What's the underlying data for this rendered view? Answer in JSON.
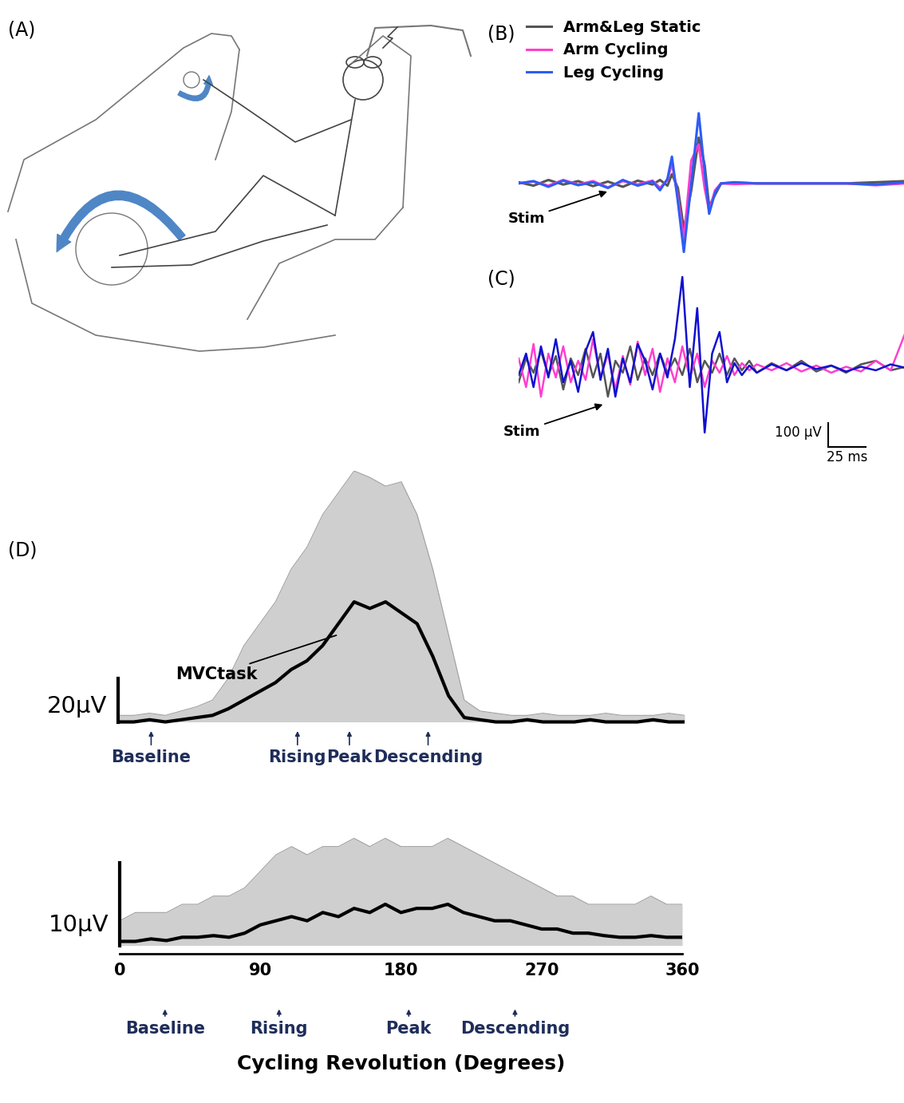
{
  "chart_data": [
    {
      "type": "diagram",
      "title": "(A)"
    },
    {
      "type": "line",
      "title": "(B)",
      "x": [
        0,
        10,
        20,
        30,
        40,
        50,
        60,
        70,
        80,
        90,
        95,
        100,
        103,
        107,
        111,
        116,
        121,
        125,
        128,
        132,
        136,
        145,
        160,
        180,
        200,
        220,
        240,
        260
      ],
      "xlim": [
        0,
        260
      ],
      "ylim": [
        -350,
        750
      ],
      "tick_labels": false,
      "legend": "upper left",
      "series": [
        {
          "name": "Arm&Leg Static",
          "color": "#555555",
          "values": [
            5,
            -10,
            15,
            -5,
            10,
            -12,
            8,
            -15,
            12,
            -5,
            15,
            -10,
            40,
            -20,
            -200,
            -30,
            200,
            80,
            -100,
            -50,
            0,
            3,
            0,
            0,
            0,
            0,
            5,
            10
          ]
        },
        {
          "name": "Arm Cycling",
          "color": "#ff3fcf",
          "values": [
            0,
            8,
            -10,
            15,
            -5,
            10,
            -18,
            10,
            -5,
            12,
            -20,
            15,
            90,
            -60,
            -250,
            100,
            170,
            -20,
            -120,
            -30,
            0,
            -3,
            0,
            0,
            0,
            0,
            -8,
            0
          ]
        },
        {
          "name": "Leg Cycling",
          "color": "#2d5cf5",
          "values": [
            0,
            10,
            -15,
            12,
            -8,
            5,
            -20,
            15,
            -10,
            8,
            -30,
            20,
            117,
            -80,
            -300,
            0,
            307,
            50,
            -133,
            -40,
            0,
            5,
            0,
            0,
            0,
            0,
            -5,
            5
          ]
        }
      ],
      "annotations": [
        {
          "text": "Stim",
          "x": 61,
          "y": -33
        }
      ]
    },
    {
      "type": "line",
      "title": "(C)",
      "x": [
        0,
        5,
        10,
        15,
        20,
        25,
        30,
        35,
        40,
        45,
        50,
        55,
        60,
        65,
        70,
        75,
        80,
        85,
        90,
        95,
        100,
        105,
        110,
        115,
        120,
        125,
        130,
        135,
        140,
        145,
        150,
        155,
        160,
        170,
        180,
        190,
        200,
        210,
        220,
        230,
        240,
        250,
        260
      ],
      "xlim": [
        0,
        260
      ],
      "ylim": [
        -330,
        420
      ],
      "tick_labels": false,
      "series": [
        {
          "color": "#555555",
          "values": [
            -60,
            40,
            -20,
            70,
            -30,
            50,
            -90,
            40,
            -30,
            80,
            -40,
            60,
            -120,
            30,
            -20,
            90,
            -50,
            40,
            -30,
            60,
            -20,
            40,
            -30,
            80,
            -60,
            30,
            -20,
            60,
            -30,
            40,
            -10,
            30,
            -20,
            20,
            -10,
            30,
            -15,
            10,
            -20,
            15,
            30,
            -10,
            5
          ]
        },
        {
          "color": "#ff3fcf",
          "values": [
            40,
            -80,
            100,
            -120,
            60,
            -40,
            90,
            -60,
            30,
            -50,
            120,
            -40,
            60,
            -90,
            50,
            -70,
            110,
            -30,
            80,
            -100,
            40,
            -60,
            90,
            -40,
            60,
            -80,
            30,
            -20,
            50,
            -30,
            20,
            -10,
            15,
            -10,
            20,
            -15,
            10,
            -20,
            5,
            -15,
            30,
            -10,
            150
          ]
        },
        {
          "color": "#1010d0",
          "values": [
            -30,
            60,
            -80,
            90,
            -40,
            120,
            -60,
            30,
            -100,
            70,
            150,
            -50,
            80,
            -120,
            40,
            -60,
            100,
            30,
            -90,
            60,
            -40,
            120,
            380,
            -80,
            250,
            -270,
            60,
            150,
            -60,
            20,
            -30,
            10,
            -20,
            15,
            -10,
            20,
            -5,
            10,
            -15,
            5,
            -10,
            15,
            0
          ]
        }
      ],
      "annotations": [
        {
          "text": "Stim",
          "x": 58,
          "y": -150
        }
      ],
      "scale_bar": {
        "y_value": 100,
        "y_label": "100 µV",
        "x_value": 25,
        "x_label": "25 ms"
      }
    },
    {
      "type": "line",
      "title": "(D)",
      "x": [
        0,
        10,
        20,
        30,
        40,
        50,
        60,
        70,
        80,
        90,
        100,
        110,
        120,
        130,
        140,
        150,
        160,
        170,
        180,
        190,
        200,
        210,
        220,
        230,
        240,
        250,
        260,
        270,
        280,
        290,
        300,
        310,
        320,
        330,
        340,
        350,
        360
      ],
      "xlim": [
        0,
        360
      ],
      "ylim": [
        -2,
        115
      ],
      "tick_labels": false,
      "series": [
        {
          "color": "#000000",
          "values": [
            0,
            0,
            1,
            0,
            1,
            2,
            3,
            6,
            10,
            14,
            18,
            24,
            28,
            35,
            45,
            55,
            52,
            55,
            50,
            45,
            30,
            12,
            2,
            1,
            0,
            0,
            1,
            0,
            0,
            0,
            1,
            0,
            0,
            0,
            1,
            0,
            0
          ],
          "upper": [
            3,
            3,
            4,
            3,
            5,
            7,
            10,
            20,
            35,
            45,
            55,
            70,
            80,
            95,
            105,
            115,
            112,
            108,
            110,
            95,
            70,
            40,
            10,
            5,
            4,
            3,
            3,
            4,
            3,
            3,
            3,
            4,
            3,
            3,
            3,
            4,
            3
          ]
        }
      ],
      "scale_bar": {
        "y_value": 20,
        "y_label": "20µV"
      },
      "annotations": [
        {
          "text": "MVCtask",
          "x": 140,
          "y": 40
        }
      ],
      "phases": [
        {
          "text": "Baseline",
          "x": 21
        },
        {
          "text": "Rising",
          "x": 114
        },
        {
          "text": "Peak",
          "x": 147
        },
        {
          "text": "Descending",
          "x": 197
        }
      ]
    },
    {
      "type": "line",
      "x": [
        0,
        10,
        20,
        30,
        40,
        50,
        60,
        70,
        80,
        90,
        100,
        110,
        120,
        130,
        140,
        150,
        160,
        170,
        180,
        190,
        200,
        210,
        220,
        230,
        240,
        250,
        260,
        270,
        280,
        290,
        300,
        310,
        320,
        330,
        340,
        350,
        360
      ],
      "xlim": [
        0,
        360
      ],
      "ylim": [
        -1,
        14
      ],
      "tick_labels": "x",
      "xticks": [
        0,
        90,
        180,
        270,
        360
      ],
      "xlabel": "Cycling Revolution (Degrees)",
      "series": [
        {
          "color": "#000000",
          "values": [
            0.5,
            0.5,
            0.8,
            0.6,
            1,
            1,
            1.2,
            1,
            1.5,
            2.5,
            3,
            3.5,
            3,
            4,
            3.5,
            4.5,
            4,
            5,
            4,
            4.5,
            4.5,
            5,
            4,
            3.5,
            3,
            3,
            2.5,
            2,
            2,
            1.5,
            1.5,
            1.2,
            1,
            1,
            1.2,
            1,
            1
          ],
          "upper": [
            3,
            4,
            4,
            4,
            5,
            5,
            6,
            6,
            7,
            9,
            11,
            12,
            11,
            12,
            12,
            13,
            12,
            13,
            12,
            12,
            12,
            13,
            12,
            11,
            10,
            9,
            8,
            7,
            6,
            6,
            5,
            5,
            5,
            5,
            6,
            5,
            5
          ]
        }
      ],
      "scale_bar": {
        "y_value": 10,
        "y_label": "10µV"
      },
      "phases": [
        {
          "text": "Baseline",
          "x": 29
        },
        {
          "text": "Rising",
          "x": 102
        },
        {
          "text": "Peak",
          "x": 185
        },
        {
          "text": "Descending",
          "x": 253
        }
      ]
    }
  ]
}
